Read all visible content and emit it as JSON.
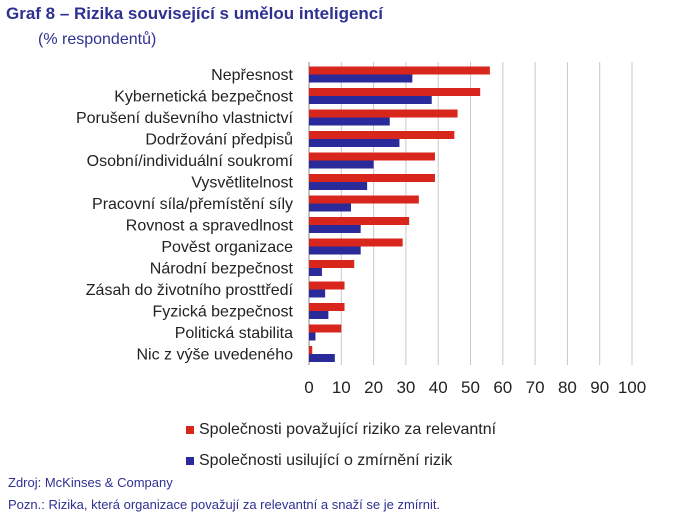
{
  "header": {
    "title": "Graf 8 – Rizika související s umělou inteligencí",
    "subtitle": "(% respondentů)"
  },
  "footer": {
    "source": "Zdroj: McKinses & Company",
    "note": "Pozn.: Rizika, která organizace považují za relevantní a snaží se je zmírnit."
  },
  "colors": {
    "series1": "#d9261c",
    "series2": "#2a2a9a",
    "grid": "#c8c8c8",
    "text": "#222222"
  },
  "chart_data": {
    "type": "bar",
    "orientation": "horizontal",
    "categories": [
      "Nepřesnost",
      "Kybernetická bezpečnost",
      "Porušení duševního vlastnictví",
      "Dodržování předpisů",
      "Osobní/individuální soukromí",
      "Vysvětlitelnost",
      "Pracovní síla/přemístění síly",
      "Rovnost a spravedlnost",
      "Pověst organizace",
      "Národní bezpečnost",
      "Zásah do životního prosttředí",
      "Fyzická bezpečnost",
      "Politická stabilita",
      "Nic z výše uvedeného"
    ],
    "series": [
      {
        "name": "Společnosti považující riziko za relevantní",
        "values": [
          56,
          53,
          46,
          45,
          39,
          39,
          34,
          31,
          29,
          14,
          11,
          11,
          10,
          1
        ]
      },
      {
        "name": "Společnosti usilující o zmírnění rizik",
        "values": [
          32,
          38,
          25,
          28,
          20,
          18,
          13,
          16,
          16,
          4,
          5,
          6,
          2,
          8
        ]
      }
    ],
    "xlim": [
      0,
      100
    ],
    "xticks": [
      0,
      10,
      20,
      30,
      40,
      50,
      60,
      70,
      80,
      90,
      100
    ],
    "grid": true,
    "legend_position": "bottom"
  }
}
